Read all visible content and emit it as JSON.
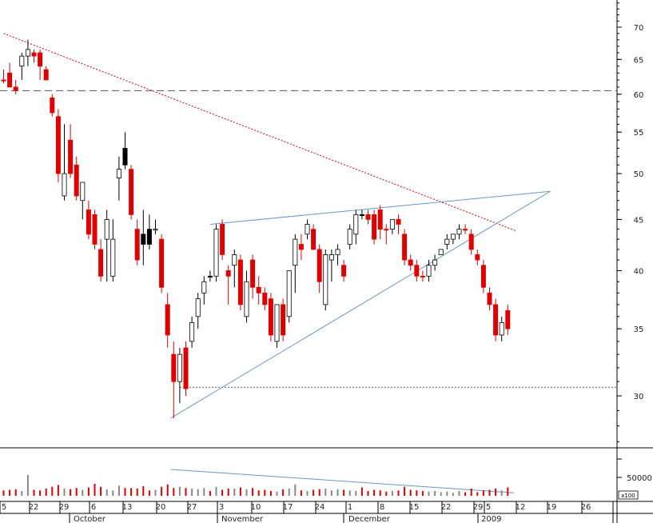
{
  "chart_data": {
    "type": "candlestick",
    "y_axis": {
      "scale": "log",
      "ylim": [
        27,
        74
      ],
      "ticks": [
        30,
        35,
        40,
        45,
        50,
        55,
        60,
        65,
        70
      ]
    },
    "volume_axis": {
      "ticks": [
        "50000"
      ],
      "unit_label": "x100"
    },
    "x_axis": {
      "date_ticks": [
        "5",
        "22",
        "29",
        "6",
        "13",
        "20",
        "27",
        "3",
        "10",
        "17",
        "24",
        "1",
        "8",
        "15",
        "22",
        "29",
        "5",
        "12",
        "19",
        "26"
      ],
      "month_labels": [
        "October",
        "November",
        "December",
        "2009"
      ]
    },
    "candles": [
      {
        "o": 62,
        "h": 63.5,
        "l": 61.5,
        "c": 62,
        "dir": "down",
        "vol": 9000
      },
      {
        "o": 63,
        "h": 64.5,
        "l": 61,
        "c": 61,
        "dir": "down",
        "vol": 10000
      },
      {
        "o": 61,
        "h": 62,
        "l": 60,
        "c": 60.5,
        "dir": "down",
        "vol": 11000
      },
      {
        "o": 64,
        "h": 66,
        "l": 62,
        "c": 65.5,
        "dir": "up",
        "vol": 8000
      },
      {
        "o": 65.5,
        "h": 68,
        "l": 64,
        "c": 66.5,
        "dir": "up",
        "vol": 35000
      },
      {
        "o": 65.5,
        "h": 66.5,
        "l": 64.5,
        "c": 66,
        "dir": "down",
        "vol": 10000
      },
      {
        "o": 66,
        "h": 66.5,
        "l": 62,
        "c": 64,
        "dir": "down",
        "vol": 9000
      },
      {
        "o": 63.5,
        "h": 64,
        "l": 62,
        "c": 62,
        "dir": "down",
        "vol": 12000
      },
      {
        "o": 59.5,
        "h": 60,
        "l": 57,
        "c": 57.5,
        "dir": "down",
        "vol": 15000
      },
      {
        "o": 57,
        "h": 58,
        "l": 49,
        "c": 50,
        "dir": "down",
        "vol": 18000
      },
      {
        "o": 50,
        "h": 56,
        "l": 47,
        "c": 47.5,
        "dir": "up",
        "vol": 12000
      },
      {
        "o": 54,
        "h": 56,
        "l": 49.5,
        "c": 50,
        "dir": "down",
        "vol": 11000
      },
      {
        "o": 51,
        "h": 52,
        "l": 47,
        "c": 47.5,
        "dir": "down",
        "vol": 13000
      },
      {
        "o": 47,
        "h": 49,
        "l": 45,
        "c": 49,
        "dir": "up",
        "vol": 10000
      },
      {
        "o": 46,
        "h": 47,
        "l": 43,
        "c": 43.5,
        "dir": "down",
        "vol": 14000
      },
      {
        "o": 45.5,
        "h": 46,
        "l": 42,
        "c": 42.5,
        "dir": "down",
        "vol": 20000
      },
      {
        "o": 42,
        "h": 43,
        "l": 39,
        "c": 39.5,
        "dir": "down",
        "vol": 15000
      },
      {
        "o": 45,
        "h": 46,
        "l": 39,
        "c": 43,
        "dir": "up",
        "vol": 11000
      },
      {
        "o": 43,
        "h": 45,
        "l": 39,
        "c": 39.5,
        "dir": "up",
        "vol": 9000
      },
      {
        "o": 49.5,
        "h": 52,
        "l": 47,
        "c": 50.5,
        "dir": "up",
        "vol": 17000
      },
      {
        "o": 53,
        "h": 55,
        "l": 50.5,
        "c": 51,
        "dir": "black",
        "vol": 13000
      },
      {
        "o": 50.5,
        "h": 51,
        "l": 45,
        "c": 45.5,
        "dir": "down",
        "vol": 13000
      },
      {
        "o": 44,
        "h": 45,
        "l": 40.5,
        "c": 41,
        "dir": "down",
        "vol": 12000
      },
      {
        "o": 43.5,
        "h": 46,
        "l": 40.5,
        "c": 42.5,
        "dir": "black",
        "vol": 16000
      },
      {
        "o": 44,
        "h": 45.5,
        "l": 42,
        "c": 42.5,
        "dir": "black",
        "vol": 9000
      },
      {
        "o": 44,
        "h": 45,
        "l": 43.5,
        "c": 44,
        "dir": "up",
        "vol": 10000
      },
      {
        "o": 43,
        "h": 43.5,
        "l": 38,
        "c": 38.5,
        "dir": "down",
        "vol": 15000
      },
      {
        "o": 37,
        "h": 38,
        "l": 33.5,
        "c": 34.5,
        "dir": "down",
        "vol": 19000
      },
      {
        "o": 33,
        "h": 34,
        "l": 28.5,
        "c": 31,
        "dir": "down",
        "vol": 13000
      },
      {
        "o": 31,
        "h": 33.5,
        "l": 29.5,
        "c": 33,
        "dir": "up",
        "vol": 15000
      },
      {
        "o": 33.5,
        "h": 34,
        "l": 30,
        "c": 30.5,
        "dir": "down",
        "vol": 13000
      },
      {
        "o": 34,
        "h": 36,
        "l": 33.5,
        "c": 35.5,
        "dir": "up",
        "vol": 12000
      },
      {
        "o": 36,
        "h": 38,
        "l": 35,
        "c": 37.5,
        "dir": "up",
        "vol": 11000
      },
      {
        "o": 38,
        "h": 39.5,
        "l": 37,
        "c": 39,
        "dir": "up",
        "vol": 13000
      },
      {
        "o": 39.5,
        "h": 40,
        "l": 39,
        "c": 39.5,
        "dir": "black",
        "vol": 8000
      },
      {
        "o": 39.5,
        "h": 44.5,
        "l": 39,
        "c": 44,
        "dir": "up",
        "vol": 15000
      },
      {
        "o": 44.5,
        "h": 45,
        "l": 41,
        "c": 41.5,
        "dir": "down",
        "vol": 10000
      },
      {
        "o": 40,
        "h": 40.5,
        "l": 37,
        "c": 39.5,
        "dir": "down",
        "vol": 12000
      },
      {
        "o": 41.5,
        "h": 42,
        "l": 38.5,
        "c": 40.5,
        "dir": "up",
        "vol": 12000
      },
      {
        "o": 41,
        "h": 41.5,
        "l": 36.5,
        "c": 37,
        "dir": "down",
        "vol": 14000
      },
      {
        "o": 39,
        "h": 40,
        "l": 35.5,
        "c": 36,
        "dir": "up",
        "vol": 11000
      },
      {
        "o": 41,
        "h": 41.5,
        "l": 37.5,
        "c": 38.5,
        "dir": "down",
        "vol": 13000
      },
      {
        "o": 38.5,
        "h": 39.5,
        "l": 37,
        "c": 38,
        "dir": "down",
        "vol": 9000
      },
      {
        "o": 38,
        "h": 38.5,
        "l": 36.5,
        "c": 37,
        "dir": "down",
        "vol": 10000
      },
      {
        "o": 37.5,
        "h": 38,
        "l": 34,
        "c": 34.5,
        "dir": "down",
        "vol": 8000
      },
      {
        "o": 34,
        "h": 37,
        "l": 33.5,
        "c": 37,
        "dir": "up",
        "vol": 7000
      },
      {
        "o": 37,
        "h": 37.5,
        "l": 34,
        "c": 34.5,
        "dir": "down",
        "vol": 11000
      },
      {
        "o": 36,
        "h": 40,
        "l": 35.5,
        "c": 40,
        "dir": "up",
        "vol": 12000
      },
      {
        "o": 40.5,
        "h": 43.5,
        "l": 38,
        "c": 43,
        "dir": "up",
        "vol": 19000
      },
      {
        "o": 42.5,
        "h": 43.5,
        "l": 41,
        "c": 42,
        "dir": "down",
        "vol": 9000
      },
      {
        "o": 43.5,
        "h": 45,
        "l": 43,
        "c": 44.5,
        "dir": "up",
        "vol": 8000
      },
      {
        "o": 44,
        "h": 44.5,
        "l": 42,
        "c": 42,
        "dir": "down",
        "vol": 10000
      },
      {
        "o": 42,
        "h": 42.5,
        "l": 38,
        "c": 39,
        "dir": "down",
        "vol": 11000
      },
      {
        "o": 37,
        "h": 42,
        "l": 36.5,
        "c": 41.5,
        "dir": "up",
        "vol": 12000
      },
      {
        "o": 41.5,
        "h": 42,
        "l": 39,
        "c": 41,
        "dir": "up",
        "vol": 9000
      },
      {
        "o": 41.5,
        "h": 42.5,
        "l": 40.5,
        "c": 42,
        "dir": "up",
        "vol": 11000
      },
      {
        "o": 40.5,
        "h": 41,
        "l": 39,
        "c": 39.5,
        "dir": "down",
        "vol": 10000
      },
      {
        "o": 42.5,
        "h": 44.5,
        "l": 42,
        "c": 44,
        "dir": "up",
        "vol": 9000
      },
      {
        "o": 43.5,
        "h": 46,
        "l": 42.5,
        "c": 45.5,
        "dir": "up",
        "vol": 8000
      },
      {
        "o": 45.5,
        "h": 46,
        "l": 45,
        "c": 45.5,
        "dir": "black",
        "vol": 14000
      },
      {
        "o": 45.5,
        "h": 46,
        "l": 44.5,
        "c": 45,
        "dir": "down",
        "vol": 8000
      },
      {
        "o": 45.5,
        "h": 46,
        "l": 42.5,
        "c": 43,
        "dir": "down",
        "vol": 10000
      },
      {
        "o": 46,
        "h": 46.5,
        "l": 43,
        "c": 44,
        "dir": "down",
        "vol": 9000
      },
      {
        "o": 44,
        "h": 44.5,
        "l": 42.5,
        "c": 44,
        "dir": "down",
        "vol": 7000
      },
      {
        "o": 44,
        "h": 45,
        "l": 43.5,
        "c": 45,
        "dir": "up",
        "vol": 8000
      },
      {
        "o": 45,
        "h": 45.5,
        "l": 43.5,
        "c": 44.5,
        "dir": "down",
        "vol": 9000
      },
      {
        "o": 43.5,
        "h": 44,
        "l": 40.5,
        "c": 41,
        "dir": "down",
        "vol": 15000
      },
      {
        "o": 41,
        "h": 41.5,
        "l": 40,
        "c": 40.5,
        "dir": "down",
        "vol": 10000
      },
      {
        "o": 40.5,
        "h": 41,
        "l": 39,
        "c": 39.5,
        "dir": "down",
        "vol": 9000
      },
      {
        "o": 39.5,
        "h": 40,
        "l": 39,
        "c": 39.5,
        "dir": "down",
        "vol": 8000
      },
      {
        "o": 39.5,
        "h": 41,
        "l": 39,
        "c": 40.5,
        "dir": "up",
        "vol": 7000
      },
      {
        "o": 40.5,
        "h": 41.5,
        "l": 40,
        "c": 41,
        "dir": "up",
        "vol": 8000
      },
      {
        "o": 41.5,
        "h": 42,
        "l": 41.5,
        "c": 42,
        "dir": "up",
        "vol": 6000
      },
      {
        "o": 42.5,
        "h": 43.5,
        "l": 42,
        "c": 43,
        "dir": "up",
        "vol": 7000
      },
      {
        "o": 43,
        "h": 43.5,
        "l": 42.5,
        "c": 43.5,
        "dir": "up",
        "vol": 5000
      },
      {
        "o": 43.5,
        "h": 44.5,
        "l": 43,
        "c": 44,
        "dir": "up",
        "vol": 8000
      },
      {
        "o": 44,
        "h": 44.5,
        "l": 43.5,
        "c": 44,
        "dir": "down",
        "vol": 6000
      },
      {
        "o": 43.5,
        "h": 44,
        "l": 41.5,
        "c": 42,
        "dir": "down",
        "vol": 12000
      },
      {
        "o": 41.5,
        "h": 42,
        "l": 40.5,
        "c": 41,
        "dir": "down",
        "vol": 6000
      },
      {
        "o": 40.5,
        "h": 41,
        "l": 38,
        "c": 38.5,
        "dir": "down",
        "vol": 9000
      },
      {
        "o": 38,
        "h": 38.5,
        "l": 36.5,
        "c": 37,
        "dir": "down",
        "vol": 10000
      },
      {
        "o": 37,
        "h": 37.5,
        "l": 34,
        "c": 34.5,
        "dir": "down",
        "vol": 12000
      },
      {
        "o": 34.5,
        "h": 36,
        "l": 34,
        "c": 35.5,
        "dir": "up",
        "vol": 9000
      },
      {
        "o": 36.5,
        "h": 37,
        "l": 34.5,
        "c": 35,
        "dir": "down",
        "vol": 14000
      }
    ],
    "lines": [
      {
        "style": "red-dotted",
        "from": [
          0,
          69
        ],
        "to": [
          84.5,
          43.8
        ]
      },
      {
        "style": "gray-dashed",
        "from": [
          0,
          60.5
        ],
        "to": [
          95,
          60.5
        ]
      },
      {
        "style": "gray-dotted",
        "from": [
          29,
          30.6
        ],
        "to": [
          95,
          30.6
        ]
      },
      {
        "style": "blue",
        "from": [
          27.5,
          28.5
        ],
        "to": [
          90,
          48
        ]
      },
      {
        "style": "blue",
        "from": [
          34,
          44.5
        ],
        "to": [
          90,
          48
        ]
      },
      {
        "style": "blue-volume",
        "from": [
          27.5,
          44000
        ],
        "to": [
          84,
          5000
        ]
      }
    ]
  },
  "colors": {
    "up": "#ffffff",
    "down": "#e00000",
    "black": "#000000",
    "trend_red": "#e00000",
    "trend_blue": "#6699cc",
    "volume_gray": "#888888"
  }
}
